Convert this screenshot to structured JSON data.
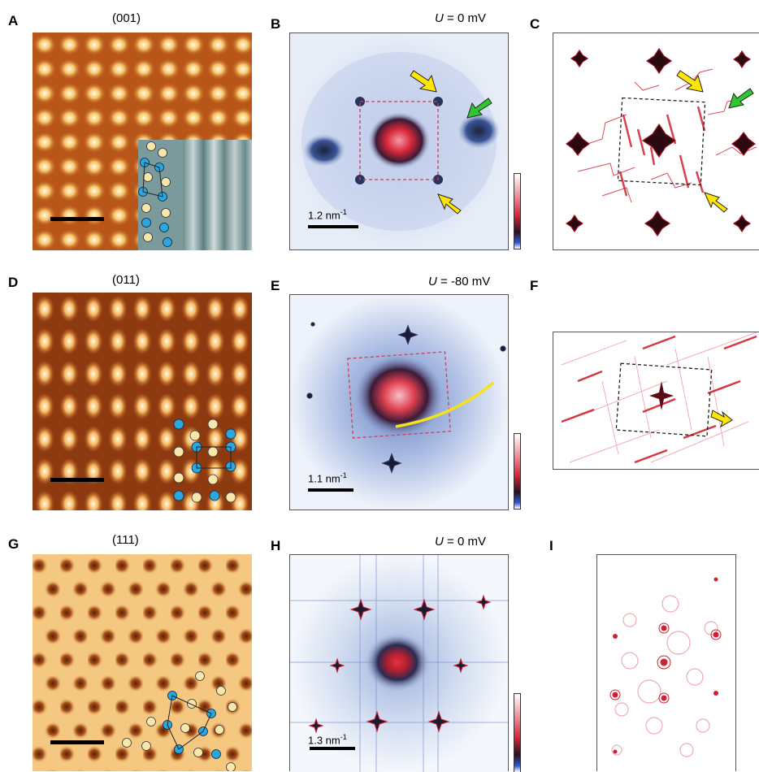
{
  "figure": {
    "panel_labels": [
      "A",
      "B",
      "C",
      "D",
      "E",
      "F",
      "G",
      "H",
      "I"
    ],
    "rows": [
      {
        "title": "(001)",
        "voltage_symbol": "U",
        "voltage_value": " = 0 mV",
        "scale_label": "1.2 nm",
        "scale_exp": "-1"
      },
      {
        "title": "(011)",
        "voltage_symbol": "U",
        "voltage_value": " = -80 mV",
        "scale_label": "1.1 nm",
        "scale_exp": "-1"
      },
      {
        "title": "(111)",
        "voltage_symbol": "U",
        "voltage_value": " = 0 mV",
        "scale_label": "1.3 nm",
        "scale_exp": "-1"
      }
    ],
    "colors": {
      "stm_dark": "#6b2a08",
      "stm_mid": "#c8621a",
      "stm_light": "#fff2c8",
      "fft_bg": "#d8e2f4",
      "fft_core": "#d9283a",
      "atom_blue": "#2aa7e0",
      "atom_yellow": "#f8e7a8",
      "arrow_yellow": "#ffe600",
      "arrow_green": "#2ec82e",
      "arc_yellow": "#f5e21a",
      "sim_red": "#d32030"
    }
  }
}
